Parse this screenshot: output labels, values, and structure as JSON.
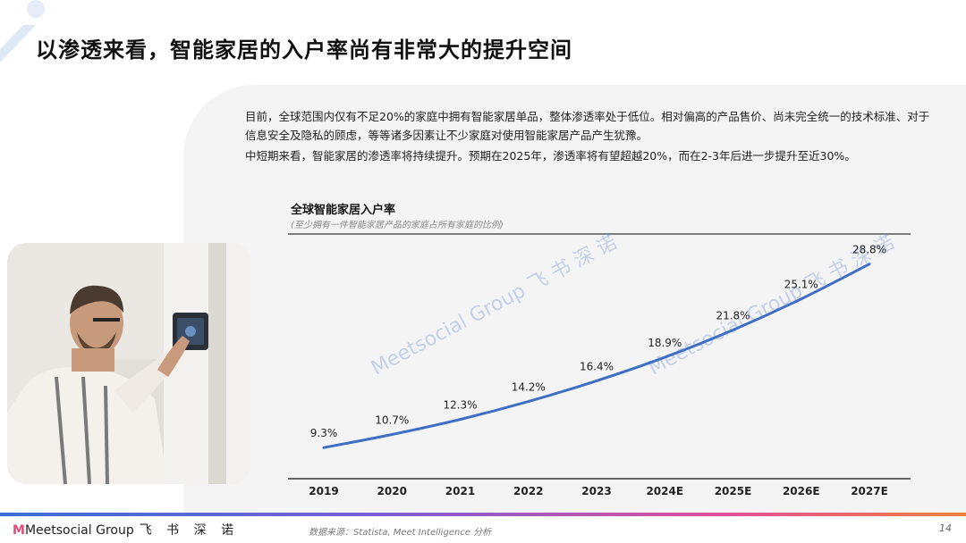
{
  "header": {
    "title": "以渗透来看，智能家居的入户率尚有非常大的提升空间"
  },
  "body": {
    "paragraph1": "目前，全球范围内仅有不足20%的家庭中拥有智能家居单品，整体渗透率处于低位。相对偏高的产品售价、尚未完全统一的技术标准、对于信息安全及隐私的顾虑，等等诸多因素让不少家庭对使用智能家居产品产生犹豫。",
    "paragraph2": "中短期来看，智能家居的渗透率将持续提升。预期在2025年，渗透率将有望超越20%，而在2-3年后进一步提升至近30%。"
  },
  "chart_data": {
    "type": "line",
    "title": "全球智能家居入户率",
    "subtitle": "(至少拥有一件智能家居产品的家庭占所有家庭的比例)",
    "categories": [
      "2019",
      "2020",
      "2021",
      "2022",
      "2023",
      "2024E",
      "2025E",
      "2026E",
      "2027E"
    ],
    "values": [
      9.3,
      10.7,
      12.3,
      14.2,
      16.4,
      18.9,
      21.8,
      25.1,
      28.8
    ],
    "labels": [
      "9.3%",
      "10.7%",
      "12.3%",
      "14.2%",
      "16.4%",
      "18.9%",
      "21.8%",
      "25.1%",
      "28.8%"
    ],
    "ylim": [
      6,
      32
    ],
    "line_color": "#3f6fc4",
    "grid": false,
    "legend": "none"
  },
  "watermark": {
    "brand": "Meetsocial Group",
    "cn": "飞 书 深 诺"
  },
  "footer": {
    "logo_brand": "Meetsocial Group",
    "logo_cn": "飞 书 深 诺",
    "source": "数据来源：Statista, Meet Intelligence 分析",
    "page_number": "14"
  }
}
